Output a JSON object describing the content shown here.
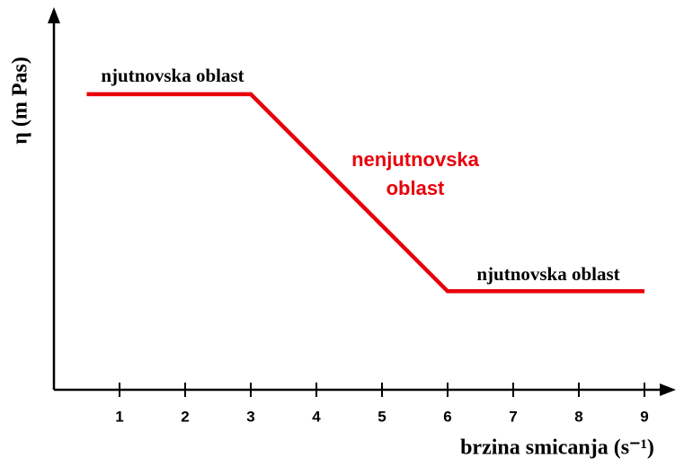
{
  "chart_data": {
    "type": "line",
    "x": [
      0.5,
      3,
      6,
      9
    ],
    "values": [
      7.8,
      7.8,
      2.6,
      2.6
    ],
    "color": "#e8000b",
    "xlim": [
      0,
      9.5
    ],
    "ylim": [
      0,
      10
    ],
    "xticks": [
      1,
      2,
      3,
      4,
      5,
      6,
      7,
      8,
      9
    ],
    "x_label": "brzina smicanja (s⁻¹)",
    "y_label": "η (m Pas)",
    "annotations": [
      "njutnovska oblast",
      "nenjutnovska",
      "oblast",
      "njutnovska oblast"
    ]
  }
}
